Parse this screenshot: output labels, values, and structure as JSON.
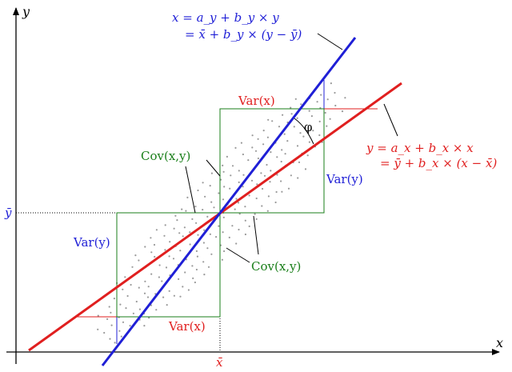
{
  "axes": {
    "x_label": "x",
    "y_label": "y",
    "x_mean_label": "x̄",
    "y_mean_label": "ȳ"
  },
  "regression_x_on_y": {
    "line1": "x = a_y + b_y × y",
    "line2": "= x̄ + b_y × (y − ȳ)",
    "color": "#1f1fd6"
  },
  "regression_y_on_x": {
    "line1": "y = a_x + b_x × x",
    "line2": "= ȳ + b_x × (x − x̄)",
    "color": "#e01f1f"
  },
  "labels": {
    "var_x_top": "Var(x)",
    "var_x_bottom": "Var(x)",
    "var_y_left": "Var(y)",
    "var_y_right": "Var(y)",
    "cov_upper": "Cov(x,y)",
    "cov_lower": "Cov(x,y)",
    "angle": "φ"
  },
  "colors": {
    "blue": "#1f1fd6",
    "red": "#e01f1f",
    "green": "#1a7f1a",
    "dots": "#9a9a9a"
  }
}
